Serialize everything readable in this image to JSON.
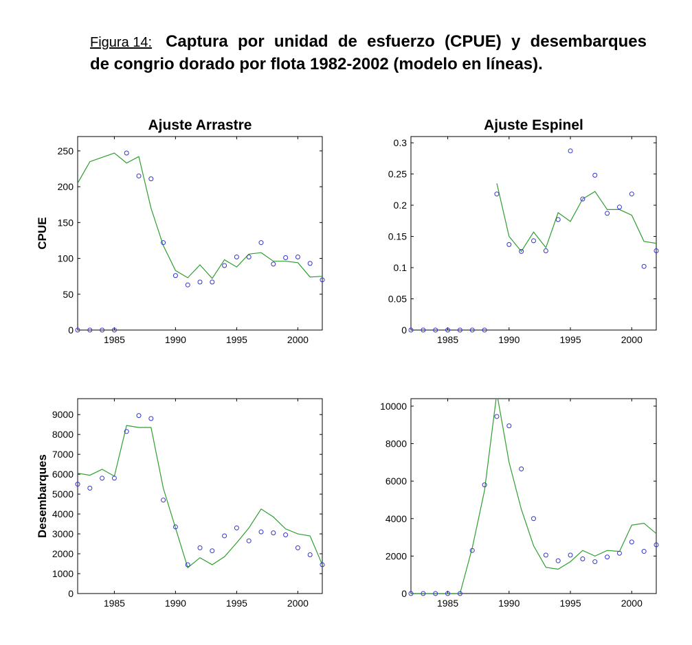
{
  "figure": {
    "label": "Figura 14:",
    "title_line1": "Captura por unidad de esfuerzo (CPUE) y desembarques",
    "title_line2": "de congrio dorado por flota 1982-2002 (modelo en líneas)."
  },
  "colors": {
    "model_line": "#2e9e2e",
    "observed_marker": "#3333cc",
    "axes": "#000000"
  },
  "chart_data": [
    {
      "id": "cpue-arrastre",
      "type": "scatter+line",
      "title": "Ajuste Arrastre",
      "xlabel": "",
      "ylabel": "CPUE",
      "xlim": [
        1982,
        2002
      ],
      "ylim": [
        0,
        270
      ],
      "xticks": [
        1985,
        1990,
        1995,
        2000
      ],
      "yticks": [
        0,
        50,
        100,
        150,
        200,
        250
      ],
      "ytick_labels": [
        "0",
        "50",
        "100",
        "150",
        "200",
        "250"
      ],
      "observed": {
        "x": [
          1982,
          1983,
          1984,
          1985,
          1986,
          1987,
          1988,
          1989,
          1990,
          1991,
          1992,
          1993,
          1994,
          1995,
          1996,
          1997,
          1998,
          1999,
          2000,
          2001,
          2002
        ],
        "y": [
          0,
          0,
          0,
          0,
          247,
          215,
          211,
          122,
          76,
          63,
          67,
          67,
          90,
          102,
          102,
          122,
          92,
          101,
          102,
          93,
          70
        ]
      },
      "model": {
        "x": [
          1982,
          1983,
          1984,
          1985,
          1986,
          1987,
          1988,
          1989,
          1990,
          1991,
          1992,
          1993,
          1994,
          1995,
          1996,
          1997,
          1998,
          1999,
          2000,
          2001,
          2002
        ],
        "y": [
          205,
          235,
          241,
          247,
          233,
          242,
          170,
          118,
          83,
          73,
          91,
          72,
          98,
          88,
          106,
          108,
          96,
          96,
          94,
          74,
          75
        ]
      }
    },
    {
      "id": "cpue-espinel",
      "type": "scatter+line",
      "title": "Ajuste Espinel",
      "xlabel": "",
      "ylabel": "",
      "xlim": [
        1982,
        2002
      ],
      "ylim": [
        0,
        0.31
      ],
      "xticks": [
        1985,
        1990,
        1995,
        2000
      ],
      "yticks": [
        0,
        0.05,
        0.1,
        0.15,
        0.2,
        0.25,
        0.3
      ],
      "ytick_labels": [
        "0",
        "0.05",
        "0.1",
        "0.15",
        "0.2",
        "0.25",
        "0.3"
      ],
      "observed": {
        "x": [
          1982,
          1983,
          1984,
          1985,
          1986,
          1987,
          1988,
          1989,
          1990,
          1991,
          1992,
          1993,
          1994,
          1995,
          1996,
          1997,
          1998,
          1999,
          2000,
          2001,
          2002
        ],
        "y": [
          0,
          0,
          0,
          0,
          0,
          0,
          0,
          0.218,
          0.137,
          0.126,
          0.143,
          0.127,
          0.177,
          0.287,
          0.21,
          0.248,
          0.187,
          0.197,
          0.218,
          0.102,
          0.127
        ]
      },
      "model": {
        "x": [
          1989,
          1990,
          1991,
          1992,
          1993,
          1994,
          1995,
          1996,
          1997,
          1998,
          1999,
          2000,
          2001,
          2002
        ],
        "y": [
          0.235,
          0.15,
          0.126,
          0.157,
          0.132,
          0.188,
          0.174,
          0.21,
          0.222,
          0.193,
          0.193,
          0.184,
          0.142,
          0.139
        ]
      }
    },
    {
      "id": "desembarques-arrastre",
      "type": "scatter+line",
      "title": "",
      "xlabel": "",
      "ylabel": "Desembarques",
      "xlim": [
        1982,
        2002
      ],
      "ylim": [
        0,
        9800
      ],
      "xticks": [
        1985,
        1990,
        1995,
        2000
      ],
      "yticks": [
        0,
        1000,
        2000,
        3000,
        4000,
        5000,
        6000,
        7000,
        8000,
        9000
      ],
      "ytick_labels": [
        "0",
        "1000",
        "2000",
        "3000",
        "4000",
        "5000",
        "6000",
        "7000",
        "8000",
        "9000"
      ],
      "observed": {
        "x": [
          1982,
          1983,
          1984,
          1985,
          1986,
          1987,
          1988,
          1989,
          1990,
          1991,
          1992,
          1993,
          1994,
          1995,
          1996,
          1997,
          1998,
          1999,
          2000,
          2001,
          2002
        ],
        "y": [
          5500,
          5300,
          5800,
          5800,
          8150,
          8950,
          8800,
          4700,
          3350,
          1450,
          2300,
          2150,
          2900,
          3300,
          2650,
          3100,
          3050,
          2950,
          2300,
          1950,
          1450
        ]
      },
      "model": {
        "x": [
          1982,
          1983,
          1984,
          1985,
          1986,
          1987,
          1988,
          1989,
          1990,
          1991,
          1992,
          1993,
          1994,
          1995,
          1996,
          1997,
          1998,
          1999,
          2000,
          2001,
          2002
        ],
        "y": [
          6050,
          5950,
          6250,
          5900,
          8450,
          8350,
          8350,
          5300,
          3300,
          1300,
          1800,
          1450,
          1850,
          2550,
          3300,
          4250,
          3850,
          3250,
          3000,
          2900,
          1450
        ]
      }
    },
    {
      "id": "desembarques-espinel",
      "type": "scatter+line",
      "title": "",
      "xlabel": "",
      "ylabel": "",
      "xlim": [
        1982,
        2002
      ],
      "ylim": [
        0,
        10400
      ],
      "xticks": [
        1985,
        1990,
        1995,
        2000
      ],
      "yticks": [
        0,
        2000,
        4000,
        6000,
        8000,
        10000
      ],
      "ytick_labels": [
        "0",
        "2000",
        "4000",
        "6000",
        "8000",
        "10000"
      ],
      "observed": {
        "x": [
          1982,
          1983,
          1984,
          1985,
          1986,
          1987,
          1988,
          1989,
          1990,
          1991,
          1992,
          1993,
          1994,
          1995,
          1996,
          1997,
          1998,
          1999,
          2000,
          2001,
          2002
        ],
        "y": [
          0,
          0,
          0,
          0,
          0,
          2300,
          5800,
          9450,
          8950,
          6650,
          4000,
          2050,
          1750,
          2050,
          1850,
          1700,
          1950,
          2150,
          2750,
          2250,
          2600
        ]
      },
      "model": {
        "x": [
          1982,
          1983,
          1984,
          1985,
          1986,
          1987,
          1988,
          1989,
          1990,
          1991,
          1992,
          1993,
          1994,
          1995,
          1996,
          1997,
          1998,
          1999,
          2000,
          2001,
          2002
        ],
        "y": [
          0,
          0,
          0,
          0,
          0,
          2450,
          5500,
          10700,
          7000,
          4500,
          2550,
          1400,
          1300,
          1700,
          2300,
          2000,
          2300,
          2250,
          3650,
          3750,
          3200
        ]
      }
    }
  ]
}
